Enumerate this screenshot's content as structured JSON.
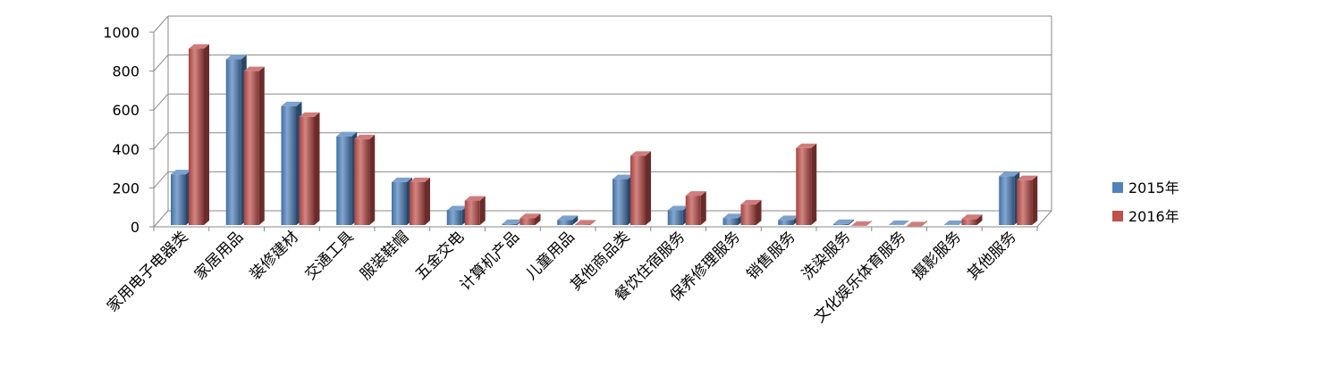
{
  "chart_data": {
    "type": "bar",
    "title": "",
    "xlabel": "",
    "ylabel": "",
    "ylim": [
      0,
      1000
    ],
    "yticks": [
      0,
      200,
      400,
      600,
      800,
      1000
    ],
    "grid": true,
    "legend_position": "right",
    "categories": [
      "家用电子电器类",
      "家居用品",
      "装修建材",
      "交通工具",
      "服装鞋帽",
      "五金交电",
      "计算机产品",
      "儿童用品",
      "其他商品类",
      "餐饮住宿服务",
      "保养修理服务",
      "销售服务",
      "洗染服务",
      "文化娱乐体育服务",
      "摄影服务",
      "其他服务"
    ],
    "series": [
      {
        "name": "2015年",
        "color": "#4F81BD",
        "values": [
          270,
          860,
          620,
          465,
          230,
          85,
          15,
          35,
          245,
          85,
          45,
          35,
          15,
          10,
          10,
          260
        ]
      },
      {
        "name": "2016年",
        "color": "#C0504D",
        "values": [
          915,
          800,
          565,
          450,
          230,
          135,
          45,
          12,
          365,
          160,
          115,
          405,
          5,
          3,
          40,
          240
        ]
      }
    ]
  }
}
